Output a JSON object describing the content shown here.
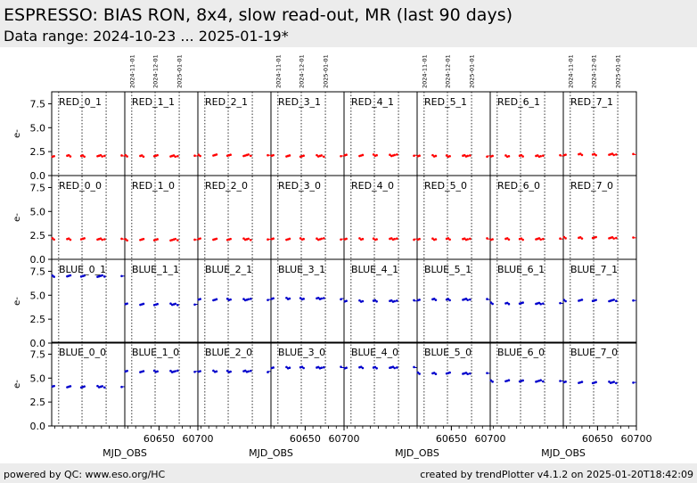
{
  "header": {
    "title": "ESPRESSO: BIAS RON, 8x4, slow read-out, MR (last 90 days)",
    "subtitle": "Data range: 2024-10-23 ... 2025-01-19*"
  },
  "footer": {
    "left": "powered by QC: www.eso.org/HC",
    "right": "created by trendPlotter v4.1.2 on 2025-01-20T18:42:09"
  },
  "colors": {
    "red_series": "#ff0000",
    "blue_series": "#0000cc",
    "axis": "#000000"
  },
  "chart_data": {
    "type": "scatter",
    "layout": "grid 4 rows x 8 columns",
    "xlabel": "MJD_OBS",
    "ylabel": "e-",
    "xlim": [
      60606,
      60700
    ],
    "ylim": [
      0,
      8.75
    ],
    "xticks": [
      60650,
      60700
    ],
    "yticks": [
      0.0,
      2.5,
      5.0,
      7.5
    ],
    "date_markers": [
      {
        "label": "2024-11-01",
        "mjd": 60615
      },
      {
        "label": "2024-12-01",
        "mjd": 60645
      },
      {
        "label": "2025-01-01",
        "mjd": 60676
      }
    ],
    "mjd_samples": [
      60607,
      60609,
      60626,
      60628,
      60630,
      60644,
      60646,
      60648,
      60665,
      60667,
      60669,
      60671,
      60674,
      60696
    ],
    "panels": [
      {
        "name": "RED_0_1",
        "row": 0,
        "col": 0,
        "color": "red",
        "mean": 2.05
      },
      {
        "name": "RED_1_1",
        "row": 0,
        "col": 1,
        "color": "red",
        "mean": 2.05
      },
      {
        "name": "RED_2_1",
        "row": 0,
        "col": 2,
        "color": "red",
        "mean": 2.12
      },
      {
        "name": "RED_3_1",
        "row": 0,
        "col": 3,
        "color": "red",
        "mean": 2.05
      },
      {
        "name": "RED_4_1",
        "row": 0,
        "col": 4,
        "color": "red",
        "mean": 2.12
      },
      {
        "name": "RED_5_1",
        "row": 0,
        "col": 5,
        "color": "red",
        "mean": 2.05
      },
      {
        "name": "RED_6_1",
        "row": 0,
        "col": 6,
        "color": "red",
        "mean": 2.05
      },
      {
        "name": "RED_7_1",
        "row": 0,
        "col": 7,
        "color": "red",
        "mean": 2.2
      },
      {
        "name": "RED_0_0",
        "row": 1,
        "col": 0,
        "color": "red",
        "mean": 2.12
      },
      {
        "name": "RED_1_0",
        "row": 1,
        "col": 1,
        "color": "red",
        "mean": 2.05
      },
      {
        "name": "RED_2_0",
        "row": 1,
        "col": 2,
        "color": "red",
        "mean": 2.1
      },
      {
        "name": "RED_3_0",
        "row": 1,
        "col": 3,
        "color": "red",
        "mean": 2.12
      },
      {
        "name": "RED_4_0",
        "row": 1,
        "col": 4,
        "color": "red",
        "mean": 2.12
      },
      {
        "name": "RED_5_0",
        "row": 1,
        "col": 5,
        "color": "red",
        "mean": 2.12
      },
      {
        "name": "RED_6_0",
        "row": 1,
        "col": 6,
        "color": "red",
        "mean": 2.12
      },
      {
        "name": "RED_7_0",
        "row": 1,
        "col": 7,
        "color": "red",
        "mean": 2.25
      },
      {
        "name": "BLUE_0_1",
        "row": 2,
        "col": 0,
        "color": "blue",
        "mean": 7.0
      },
      {
        "name": "BLUE_1_1",
        "row": 2,
        "col": 1,
        "color": "blue",
        "mean": 4.05
      },
      {
        "name": "BLUE_2_1",
        "row": 2,
        "col": 2,
        "color": "blue",
        "mean": 4.55
      },
      {
        "name": "BLUE_3_1",
        "row": 2,
        "col": 3,
        "color": "blue",
        "mean": 4.65
      },
      {
        "name": "BLUE_4_1",
        "row": 2,
        "col": 4,
        "color": "blue",
        "mean": 4.4
      },
      {
        "name": "BLUE_5_1",
        "row": 2,
        "col": 5,
        "color": "blue",
        "mean": 4.55
      },
      {
        "name": "BLUE_6_1",
        "row": 2,
        "col": 6,
        "color": "blue",
        "mean": 4.15
      },
      {
        "name": "BLUE_7_1",
        "row": 2,
        "col": 7,
        "color": "blue",
        "mean": 4.45
      },
      {
        "name": "BLUE_0_0",
        "row": 3,
        "col": 0,
        "color": "blue",
        "mean": 4.1
      },
      {
        "name": "BLUE_1_0",
        "row": 3,
        "col": 1,
        "color": "blue",
        "mean": 5.7
      },
      {
        "name": "BLUE_2_0",
        "row": 3,
        "col": 2,
        "color": "blue",
        "mean": 5.7
      },
      {
        "name": "BLUE_3_0",
        "row": 3,
        "col": 3,
        "color": "blue",
        "mean": 6.1
      },
      {
        "name": "BLUE_4_0",
        "row": 3,
        "col": 4,
        "color": "blue",
        "mean": 6.1
      },
      {
        "name": "BLUE_5_0",
        "row": 3,
        "col": 5,
        "color": "blue",
        "mean": 5.5
      },
      {
        "name": "BLUE_6_0",
        "row": 3,
        "col": 6,
        "color": "blue",
        "mean": 4.7
      },
      {
        "name": "BLUE_7_0",
        "row": 3,
        "col": 7,
        "color": "blue",
        "mean": 4.55
      }
    ]
  }
}
